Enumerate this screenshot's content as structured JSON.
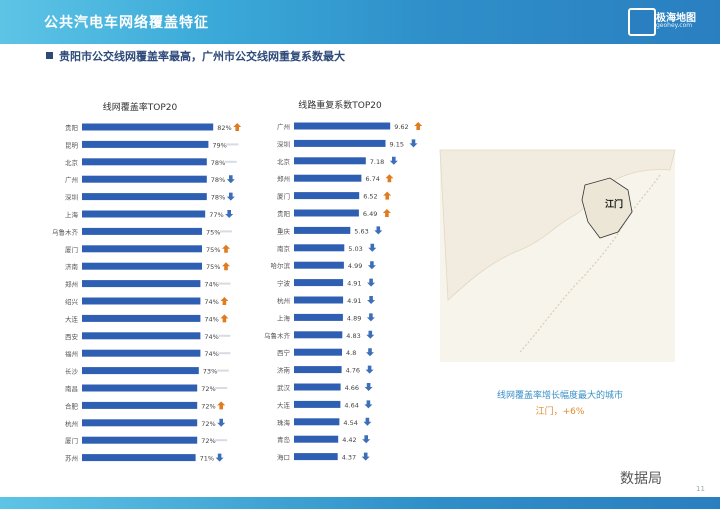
{
  "header": {
    "title": "公共汽电车网络覆盖特征",
    "logo_text": "极海地图",
    "logo_sub": "geohey.com"
  },
  "subtitle": "贵阳市公交线网覆盖率最高，广州市公交线网重复系数最大",
  "colors": {
    "bar": "#2f5fb3",
    "faint": "#d6dbe4",
    "up": "#e07b1f",
    "down": "#3d6fb8",
    "header": "#2f8fc9"
  },
  "chart_data": [
    {
      "type": "bar",
      "orientation": "horizontal",
      "title": "线网覆盖率TOP20",
      "value_suffix": "%",
      "categories": [
        "贵阳",
        "昆明",
        "北京",
        "广州",
        "深圳",
        "上海",
        "乌鲁木齐",
        "厦门",
        "济南",
        "郑州",
        "绍兴",
        "大连",
        "西安",
        "福州",
        "长沙",
        "南昌",
        "合肥",
        "杭州",
        "厦门",
        "苏州"
      ],
      "values": [
        82,
        79,
        78,
        78,
        78,
        77,
        75,
        75,
        75,
        74,
        74,
        74,
        74,
        74,
        73,
        72,
        72,
        72,
        72,
        71
      ],
      "trend": [
        "up",
        "none",
        "none",
        "down",
        "down",
        "down",
        "none",
        "up",
        "up",
        "none",
        "up",
        "up",
        "none",
        "none",
        "none",
        "none",
        "up",
        "down",
        "none",
        "down"
      ],
      "xlim": [
        0,
        100
      ]
    },
    {
      "type": "bar",
      "orientation": "horizontal",
      "title": "线路重复系数TOP20",
      "value_suffix": "",
      "categories": [
        "广州",
        "深圳",
        "北京",
        "郑州",
        "厦门",
        "贵阳",
        "重庆",
        "南京",
        "哈尔滨",
        "宁波",
        "杭州",
        "上海",
        "乌鲁木齐",
        "西宁",
        "济南",
        "武汉",
        "大连",
        "珠海",
        "青岛",
        "海口"
      ],
      "values": [
        9.62,
        9.15,
        7.18,
        6.74,
        6.52,
        6.49,
        5.63,
        5.03,
        4.99,
        4.91,
        4.91,
        4.89,
        4.83,
        4.8,
        4.76,
        4.66,
        4.64,
        4.54,
        4.42,
        4.37
      ],
      "trend": [
        "up",
        "down",
        "down",
        "up",
        "up",
        "up",
        "down",
        "down",
        "down",
        "down",
        "down",
        "down",
        "down",
        "down",
        "down",
        "down",
        "down",
        "down",
        "down",
        "down"
      ],
      "xlim": [
        0,
        10
      ]
    }
  ],
  "map": {
    "label": "江门",
    "caption": "线网覆盖率增长幅度最大的城市",
    "note": "江门，+6%"
  },
  "watermark": "数据局",
  "page_num": "11"
}
